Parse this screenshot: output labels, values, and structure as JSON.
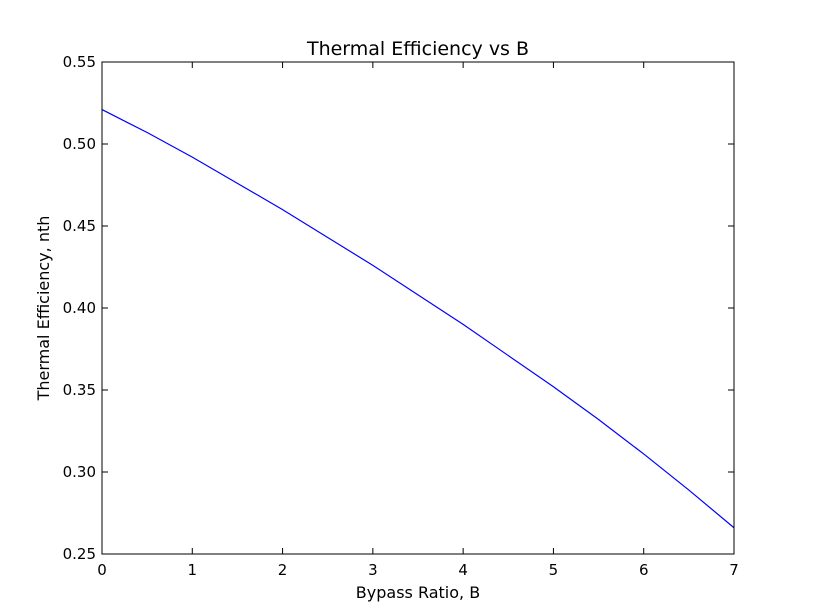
{
  "chart_data": {
    "type": "line",
    "title": "Thermal Efficiency vs B",
    "xlabel": "Bypass Ratio, B",
    "ylabel": "Thermal Efficiency, nth",
    "xlim": [
      0,
      7
    ],
    "ylim": [
      0.25,
      0.55
    ],
    "xticks": [
      0,
      1,
      2,
      3,
      4,
      5,
      6,
      7
    ],
    "xtick_labels": [
      "0",
      "1",
      "2",
      "3",
      "4",
      "5",
      "6",
      "7"
    ],
    "yticks": [
      0.25,
      0.3,
      0.35,
      0.4,
      0.45,
      0.5,
      0.55
    ],
    "ytick_labels": [
      "0.25",
      "0.30",
      "0.35",
      "0.40",
      "0.45",
      "0.50",
      "0.55"
    ],
    "grid": false,
    "series": [
      {
        "color": "#0000ff",
        "x": [
          0,
          0.5,
          1,
          1.5,
          2,
          2.5,
          3,
          3.5,
          4,
          4.5,
          5,
          5.5,
          6,
          6.5,
          7
        ],
        "y": [
          0.521,
          0.507,
          0.492,
          0.476,
          0.46,
          0.443,
          0.426,
          0.408,
          0.39,
          0.371,
          0.352,
          0.332,
          0.311,
          0.289,
          0.266
        ]
      }
    ]
  }
}
